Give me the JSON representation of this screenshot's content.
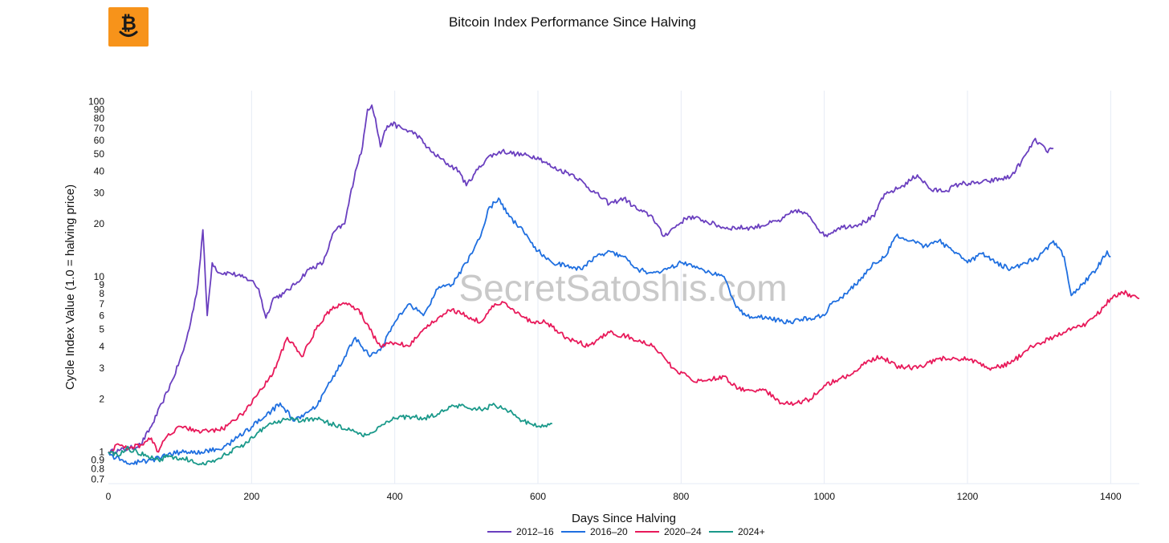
{
  "page": {
    "watermark": "SecretSatoshis.com",
    "logo_icon": "bitcoin-smiley-icon",
    "logo_color": "#f7931a"
  },
  "chart_data": {
    "type": "line",
    "title": "Bitcoin Index Performance Since Halving",
    "xlabel": "Days Since Halving",
    "ylabel": "Cycle Index Value (1.0 = halving price)",
    "yscale": "log",
    "xlim": [
      0,
      1440
    ],
    "ylim": [
      0.66,
      115
    ],
    "grid": true,
    "legend_position": "bottom-center",
    "x_ticks": [
      0,
      200,
      400,
      600,
      800,
      1000,
      1200,
      1400
    ],
    "y_ticks": [
      {
        "value": 0.7,
        "label": "0.7"
      },
      {
        "value": 0.8,
        "label": "0.8"
      },
      {
        "value": 0.9,
        "label": "0.9"
      },
      {
        "value": 1,
        "label": "1"
      },
      {
        "value": 2,
        "label": "2"
      },
      {
        "value": 3,
        "label": "3"
      },
      {
        "value": 4,
        "label": "4"
      },
      {
        "value": 5,
        "label": "5"
      },
      {
        "value": 6,
        "label": "6"
      },
      {
        "value": 7,
        "label": "7"
      },
      {
        "value": 8,
        "label": "8"
      },
      {
        "value": 9,
        "label": "9"
      },
      {
        "value": 10,
        "label": "10"
      },
      {
        "value": 20,
        "label": "20"
      },
      {
        "value": 30,
        "label": "30"
      },
      {
        "value": 40,
        "label": "40"
      },
      {
        "value": 50,
        "label": "50"
      },
      {
        "value": 60,
        "label": "60"
      },
      {
        "value": 70,
        "label": "70"
      },
      {
        "value": 80,
        "label": "80"
      },
      {
        "value": 90,
        "label": "90"
      },
      {
        "value": 100,
        "label": "100"
      }
    ],
    "series": [
      {
        "name": "2012–16",
        "color": "#6a3fbf",
        "x": [
          0,
          15,
          30,
          45,
          60,
          75,
          90,
          105,
          115,
          125,
          132,
          138,
          145,
          155,
          170,
          185,
          200,
          210,
          220,
          230,
          245,
          260,
          280,
          300,
          315,
          330,
          345,
          355,
          362,
          368,
          373,
          380,
          386,
          395,
          410,
          430,
          450,
          470,
          490,
          500,
          510,
          530,
          550,
          570,
          600,
          620,
          650,
          680,
          700,
          720,
          740,
          760,
          775,
          790,
          810,
          830,
          860,
          900,
          940,
          960,
          980,
          1000,
          1020,
          1050,
          1070,
          1080,
          1090,
          1110,
          1130,
          1150,
          1170,
          1190,
          1210,
          1230,
          1260,
          1275,
          1285,
          1293,
          1300,
          1310,
          1320
        ],
        "values": [
          1.0,
          1.02,
          1.05,
          1.1,
          1.4,
          1.9,
          2.6,
          3.8,
          5.5,
          9.0,
          18.5,
          6.0,
          12.0,
          10.5,
          10.5,
          10.0,
          9.5,
          8.5,
          5.8,
          7.5,
          8.0,
          9.0,
          11.0,
          12.0,
          18.0,
          20.0,
          40.0,
          55.0,
          90.0,
          95.0,
          80.0,
          55.0,
          68.0,
          75.0,
          70.0,
          65.0,
          52.0,
          45.0,
          40.0,
          33.0,
          38.0,
          48.0,
          52.0,
          50.0,
          48.0,
          42.0,
          38.0,
          30.0,
          26.0,
          28.0,
          24.0,
          22.0,
          17.0,
          19.0,
          22.0,
          21.0,
          19.0,
          19.0,
          21.0,
          24.0,
          22.0,
          17.0,
          19.0,
          20.0,
          22.0,
          28.0,
          30.0,
          33.0,
          38.0,
          31.0,
          31.0,
          34.0,
          34.0,
          35.0,
          37.0,
          45.0,
          52.0,
          60.0,
          58.0,
          52.0,
          54.0
        ]
      },
      {
        "name": "2016–20",
        "color": "#1f6fe0",
        "x": [
          0,
          10,
          20,
          30,
          45,
          60,
          80,
          100,
          130,
          160,
          190,
          220,
          240,
          260,
          290,
          310,
          330,
          345,
          365,
          380,
          400,
          420,
          440,
          460,
          480,
          500,
          520,
          530,
          545,
          560,
          580,
          600,
          620,
          640,
          660,
          680,
          700,
          720,
          740,
          760,
          780,
          800,
          830,
          860,
          875,
          890,
          920,
          950,
          980,
          1000,
          1010,
          1030,
          1050,
          1070,
          1085,
          1100,
          1120,
          1140,
          1160,
          1180,
          1200,
          1220,
          1240,
          1260,
          1280,
          1300,
          1320,
          1335,
          1345,
          1360,
          1380,
          1395,
          1400
        ],
        "values": [
          1.0,
          0.92,
          0.9,
          0.85,
          0.88,
          0.9,
          0.95,
          1.0,
          1.0,
          1.05,
          1.3,
          1.6,
          1.9,
          1.5,
          1.8,
          2.5,
          3.5,
          4.5,
          3.5,
          3.8,
          5.5,
          7.0,
          6.0,
          8.5,
          9.0,
          12.0,
          17.0,
          24.0,
          28.0,
          22.0,
          18.0,
          14.0,
          12.0,
          11.5,
          11.0,
          13.0,
          14.0,
          13.0,
          11.0,
          10.5,
          11.0,
          12.0,
          11.0,
          10.0,
          7.0,
          6.0,
          5.8,
          5.5,
          5.8,
          6.0,
          7.0,
          8.0,
          9.5,
          12.0,
          13.0,
          17.0,
          16.0,
          15.0,
          16.0,
          14.0,
          12.0,
          13.5,
          12.0,
          11.0,
          12.0,
          13.0,
          16.0,
          13.0,
          7.8,
          9.0,
          11.0,
          14.0,
          13.0
        ]
      },
      {
        "name": "2020–24",
        "color": "#e8195a",
        "x": [
          0,
          15,
          30,
          45,
          60,
          70,
          80,
          100,
          130,
          160,
          190,
          210,
          230,
          250,
          270,
          290,
          310,
          330,
          350,
          365,
          380,
          400,
          420,
          440,
          460,
          480,
          500,
          520,
          540,
          550,
          570,
          590,
          610,
          640,
          670,
          700,
          730,
          760,
          790,
          820,
          840,
          860,
          880,
          920,
          940,
          960,
          980,
          1000,
          1020,
          1040,
          1060,
          1080,
          1100,
          1130,
          1160,
          1200,
          1230,
          1260,
          1290,
          1320,
          1340,
          1360,
          1380,
          1400,
          1415,
          1430,
          1440
        ],
        "values": [
          1.0,
          1.1,
          1.05,
          1.1,
          1.2,
          1.0,
          1.2,
          1.4,
          1.3,
          1.35,
          1.7,
          2.2,
          2.8,
          4.5,
          3.5,
          5.0,
          6.5,
          7.0,
          6.5,
          5.0,
          4.0,
          4.2,
          4.0,
          5.0,
          5.8,
          6.5,
          6.0,
          5.5,
          7.0,
          7.2,
          6.2,
          5.5,
          5.5,
          4.5,
          4.0,
          4.8,
          4.5,
          4.0,
          3.0,
          2.5,
          2.6,
          2.7,
          2.3,
          2.2,
          1.9,
          1.9,
          2.0,
          2.4,
          2.6,
          2.8,
          3.3,
          3.5,
          3.1,
          3.0,
          3.4,
          3.4,
          3.0,
          3.2,
          4.0,
          4.5,
          5.0,
          5.2,
          6.0,
          7.5,
          8.2,
          7.8,
          7.5
        ]
      },
      {
        "name": "2024+",
        "color": "#1a998a",
        "x": [
          0,
          15,
          25,
          40,
          55,
          70,
          85,
          100,
          115,
          130,
          150,
          170,
          190,
          210,
          230,
          250,
          270,
          290,
          310,
          330,
          345,
          360,
          380,
          400,
          420,
          440,
          460,
          480,
          500,
          520,
          540,
          560,
          580,
          600,
          620
        ],
        "values": [
          1.0,
          0.95,
          1.05,
          1.0,
          0.95,
          0.9,
          0.95,
          0.92,
          0.9,
          0.85,
          0.9,
          1.0,
          1.1,
          1.3,
          1.45,
          1.55,
          1.5,
          1.55,
          1.45,
          1.35,
          1.3,
          1.25,
          1.4,
          1.55,
          1.6,
          1.55,
          1.65,
          1.85,
          1.8,
          1.75,
          1.85,
          1.7,
          1.5,
          1.4,
          1.45
        ]
      }
    ]
  }
}
